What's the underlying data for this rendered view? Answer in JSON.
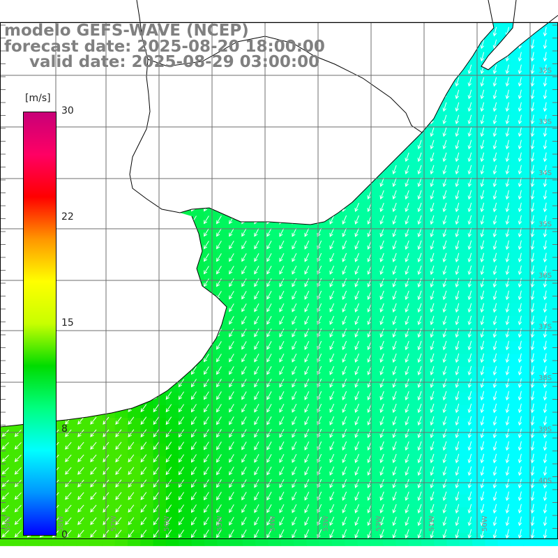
{
  "title": {
    "model": "modelo GEFS-WAVE (NCEP)",
    "forecast": "forecast date: 2025-08-20 18:00:00",
    "valid": "valid date: 2025-08-29 03:00:00"
  },
  "colorbar": {
    "unit": "[m/s]",
    "ticks": [
      "30",
      "22",
      "15",
      "8",
      "0"
    ],
    "range": [
      0,
      30
    ],
    "colors": [
      "#0000ff",
      "#0096ff",
      "#00ffff",
      "#00ff80",
      "#00dc00",
      "#c8ff00",
      "#ffff00",
      "#ff9600",
      "#ff0000",
      "#ff0064",
      "#c80078"
    ]
  },
  "grid": {
    "lat_labels": [
      "32S",
      "33S",
      "34S",
      "35S",
      "36S",
      "37S",
      "38S",
      "39S",
      "40S"
    ],
    "lon_labels": [
      "59W",
      "58W",
      "57W",
      "56W",
      "55W",
      "54W",
      "53W",
      "52W",
      "51W",
      "50W"
    ]
  },
  "map": {
    "region": "Rio de la Plata and South Atlantic",
    "wind_direction": "towards south-west",
    "speed_range_ms": [
      6,
      13
    ],
    "land_color": "#ffffff",
    "coast_color": "#000000",
    "arrow_color": "#ffffff"
  }
}
